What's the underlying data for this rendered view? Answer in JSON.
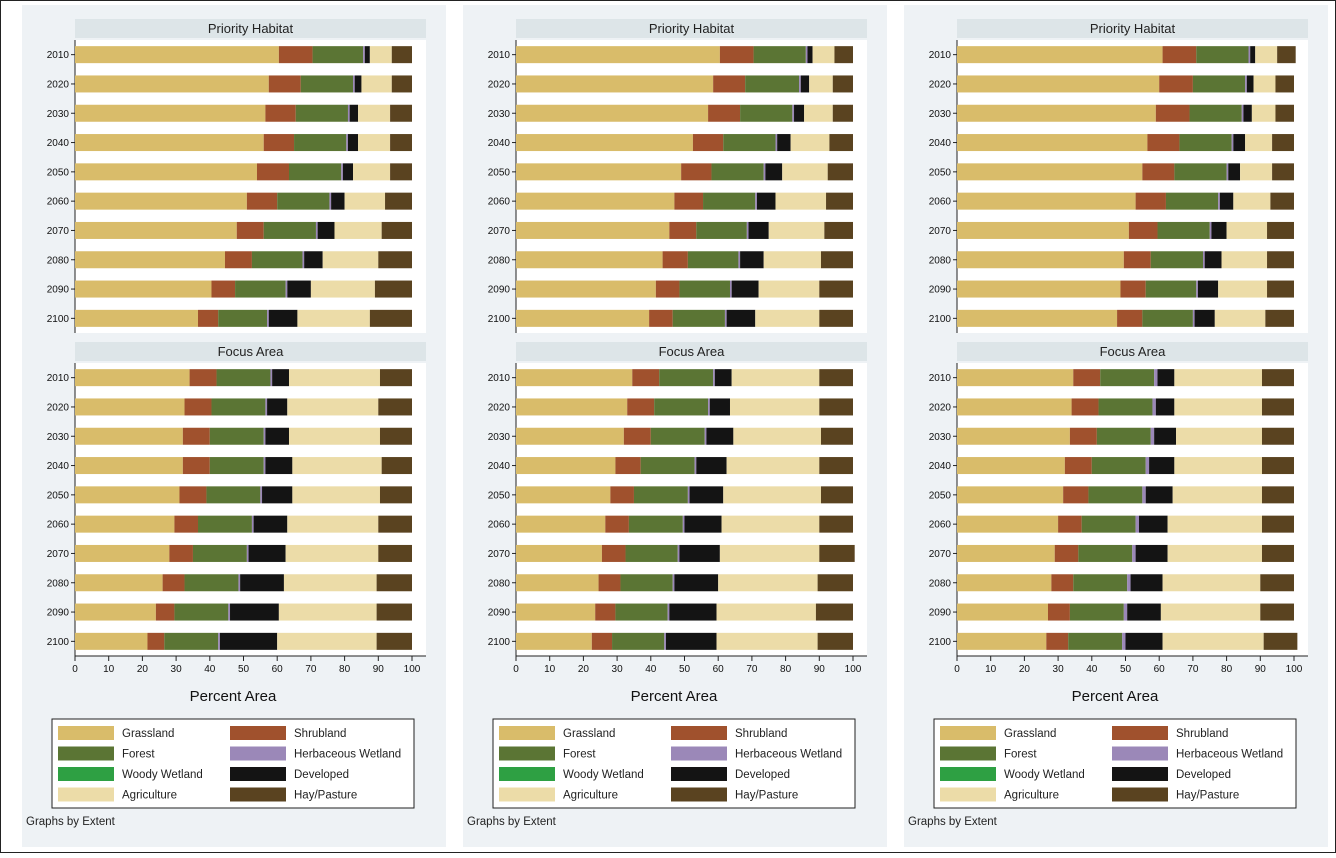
{
  "colors": {
    "Grassland": "#d9bc6a",
    "Shrubland": "#a0512d",
    "Forest": "#5b7534",
    "Herbaceous Wetland": "#9b88b8",
    "Woody Wetland": "#2ea043",
    "Developed": "#141414",
    "Agriculture": "#ecdca8",
    "Hay/Pasture": "#5a4320"
  },
  "legend": {
    "items": [
      "Grassland",
      "Shrubland",
      "Forest",
      "Herbaceous Wetland",
      "Woody Wetland",
      "Developed",
      "Agriculture",
      "Hay/Pasture"
    ]
  },
  "caption": "Graphs by Extent",
  "chart_data": [
    {
      "type": "bar",
      "orientation": "horizontal",
      "stacked": true,
      "xlabel": "Percent Area",
      "xlim": [
        0,
        100
      ],
      "xticks": [
        0,
        10,
        20,
        30,
        40,
        50,
        60,
        70,
        80,
        90,
        100
      ],
      "panels": [
        {
          "title": "Priority Habitat",
          "categories": [
            "2010",
            "2020",
            "2030",
            "2040",
            "2050",
            "2060",
            "2070",
            "2080",
            "2090",
            "2100"
          ],
          "series": [
            {
              "name": "Grassland",
              "values": [
                60.5,
                57.5,
                56.5,
                56,
                54,
                51,
                48,
                44.5,
                40.5,
                36.5
              ]
            },
            {
              "name": "Shrubland",
              "values": [
                10,
                9.5,
                9,
                9,
                9.5,
                9,
                8,
                8,
                7,
                6
              ]
            },
            {
              "name": "Forest",
              "values": [
                15,
                15.5,
                15.5,
                15.5,
                15.5,
                15.5,
                15.5,
                15,
                15,
                14.5
              ]
            },
            {
              "name": "Herbaceous Wetland",
              "values": [
                0.5,
                0.5,
                0.5,
                0.5,
                0.5,
                0.5,
                0.5,
                0.5,
                0.5,
                0.5
              ]
            },
            {
              "name": "Woody Wetland",
              "values": [
                0,
                0,
                0,
                0,
                0,
                0,
                0,
                0,
                0,
                0
              ]
            },
            {
              "name": "Developed",
              "values": [
                1.5,
                2,
                2.5,
                3,
                3,
                4,
                5,
                5.5,
                7,
                8.5
              ]
            },
            {
              "name": "Agriculture",
              "values": [
                6.5,
                9,
                9.5,
                9.5,
                11,
                12,
                14,
                16.5,
                19,
                21.5
              ]
            },
            {
              "name": "Hay/Pasture",
              "values": [
                6,
                6,
                6.5,
                6.5,
                6.5,
                8,
                9,
                10,
                11,
                12.5
              ]
            }
          ]
        },
        {
          "title": "Focus Area",
          "categories": [
            "2010",
            "2020",
            "2030",
            "2040",
            "2050",
            "2060",
            "2070",
            "2080",
            "2090",
            "2100"
          ],
          "series": [
            {
              "name": "Grassland",
              "values": [
                34,
                32.5,
                32,
                32,
                31,
                29.5,
                28,
                26,
                24,
                21.5
              ]
            },
            {
              "name": "Shrubland",
              "values": [
                8,
                8,
                8,
                8,
                8,
                7,
                7,
                6.5,
                5.5,
                5
              ]
            },
            {
              "name": "Forest",
              "values": [
                16,
                16,
                16,
                16,
                16,
                16,
                16,
                16,
                16,
                16
              ]
            },
            {
              "name": "Herbaceous Wetland",
              "values": [
                0.5,
                0.5,
                0.5,
                0.5,
                0.5,
                0.5,
                0.5,
                0.5,
                0.5,
                0.5
              ]
            },
            {
              "name": "Woody Wetland",
              "values": [
                0,
                0,
                0,
                0,
                0,
                0,
                0,
                0,
                0,
                0
              ]
            },
            {
              "name": "Developed",
              "values": [
                5,
                6,
                7,
                8,
                9,
                10,
                11,
                13,
                14.5,
                17
              ]
            },
            {
              "name": "Agriculture",
              "values": [
                27,
                27,
                27,
                26.5,
                26,
                27,
                27.5,
                27.5,
                29,
                29.5
              ]
            },
            {
              "name": "Hay/Pasture",
              "values": [
                9.5,
                10,
                9.5,
                9,
                9.5,
                10,
                10,
                10.5,
                10.5,
                10.5
              ]
            }
          ]
        }
      ]
    },
    {
      "type": "bar",
      "orientation": "horizontal",
      "stacked": true,
      "xlabel": "Percent Area",
      "xlim": [
        0,
        100
      ],
      "xticks": [
        0,
        10,
        20,
        30,
        40,
        50,
        60,
        70,
        80,
        90,
        100
      ],
      "panels": [
        {
          "title": "Priority Habitat",
          "categories": [
            "2010",
            "2020",
            "2030",
            "2040",
            "2050",
            "2060",
            "2070",
            "2080",
            "2090",
            "2100"
          ],
          "series": [
            {
              "name": "Grassland",
              "values": [
                60.5,
                58.5,
                57,
                52.5,
                49,
                47,
                45.5,
                43.5,
                41.5,
                39.5
              ]
            },
            {
              "name": "Shrubland",
              "values": [
                10,
                9.5,
                9.5,
                9,
                9,
                8.5,
                8,
                7.5,
                7,
                7
              ]
            },
            {
              "name": "Forest",
              "values": [
                15.5,
                16,
                15.5,
                15.5,
                15.5,
                15.5,
                15,
                15,
                15,
                15.5
              ]
            },
            {
              "name": "Herbaceous Wetland",
              "values": [
                0.5,
                0.5,
                0.5,
                0.5,
                0.5,
                0.5,
                0.5,
                0.5,
                0.5,
                0.5
              ]
            },
            {
              "name": "Woody Wetland",
              "values": [
                0,
                0,
                0,
                0,
                0,
                0,
                0,
                0,
                0,
                0
              ]
            },
            {
              "name": "Developed",
              "values": [
                1.5,
                2.5,
                3,
                4,
                5,
                5.5,
                6,
                7,
                8,
                8.5
              ]
            },
            {
              "name": "Agriculture",
              "values": [
                6.5,
                7,
                8.5,
                11.5,
                13.5,
                15,
                16.5,
                17,
                18,
                19
              ]
            },
            {
              "name": "Hay/Pasture",
              "values": [
                5.5,
                6,
                6,
                7,
                7.5,
                8,
                8.5,
                9.5,
                10,
                10
              ]
            }
          ]
        },
        {
          "title": "Focus Area",
          "categories": [
            "2010",
            "2020",
            "2030",
            "2040",
            "2050",
            "2060",
            "2070",
            "2080",
            "2090",
            "2100"
          ],
          "series": [
            {
              "name": "Grassland",
              "values": [
                34.5,
                33,
                32,
                29.5,
                28,
                26.5,
                25.5,
                24.5,
                23.5,
                22.5
              ]
            },
            {
              "name": "Shrubland",
              "values": [
                8,
                8,
                8,
                7.5,
                7,
                7,
                7,
                6.5,
                6,
                6
              ]
            },
            {
              "name": "Forest",
              "values": [
                16,
                16,
                16,
                16,
                16,
                16,
                15.5,
                15.5,
                15.5,
                15.5
              ]
            },
            {
              "name": "Herbaceous Wetland",
              "values": [
                0.5,
                0.5,
                0.5,
                0.5,
                0.5,
                0.5,
                0.5,
                0.5,
                0.5,
                0.5
              ]
            },
            {
              "name": "Woody Wetland",
              "values": [
                0,
                0,
                0,
                0,
                0,
                0,
                0,
                0,
                0,
                0
              ]
            },
            {
              "name": "Developed",
              "values": [
                5,
                6,
                8,
                9,
                10,
                11,
                12,
                13,
                14,
                15
              ]
            },
            {
              "name": "Agriculture",
              "values": [
                26,
                26.5,
                26,
                27.5,
                29,
                29,
                29.5,
                29.5,
                29.5,
                30
              ]
            },
            {
              "name": "Hay/Pasture",
              "values": [
                10,
                10,
                9.5,
                10,
                9.5,
                10,
                10.5,
                10.5,
                11,
                10.5
              ]
            }
          ]
        }
      ]
    },
    {
      "type": "bar",
      "orientation": "horizontal",
      "stacked": true,
      "xlabel": "Percent Area",
      "xlim": [
        0,
        100
      ],
      "xticks": [
        0,
        10,
        20,
        30,
        40,
        50,
        60,
        70,
        80,
        90,
        100
      ],
      "panels": [
        {
          "title": "Priority Habitat",
          "categories": [
            "2010",
            "2020",
            "2030",
            "2040",
            "2050",
            "2060",
            "2070",
            "2080",
            "2090",
            "2100"
          ],
          "series": [
            {
              "name": "Grassland",
              "values": [
                61,
                60,
                59,
                56.5,
                55,
                53,
                51,
                49.5,
                48.5,
                47.5
              ]
            },
            {
              "name": "Shrubland",
              "values": [
                10,
                10,
                10,
                9.5,
                9.5,
                9,
                8.5,
                8,
                7.5,
                7.5
              ]
            },
            {
              "name": "Forest",
              "values": [
                15.5,
                15.5,
                15.5,
                15.5,
                15.5,
                15.5,
                15.5,
                15.5,
                15,
                15
              ]
            },
            {
              "name": "Herbaceous Wetland",
              "values": [
                0.5,
                0.5,
                0.5,
                0.5,
                0.5,
                0.5,
                0.5,
                0.5,
                0.5,
                0.5
              ]
            },
            {
              "name": "Woody Wetland",
              "values": [
                0,
                0,
                0,
                0,
                0,
                0,
                0,
                0,
                0,
                0
              ]
            },
            {
              "name": "Developed",
              "values": [
                1.5,
                2,
                2.5,
                3.5,
                3.5,
                4,
                4.5,
                5,
                6,
                6
              ]
            },
            {
              "name": "Agriculture",
              "values": [
                6.5,
                6.5,
                7,
                8,
                9.5,
                11,
                12,
                13.5,
                14.5,
                15
              ]
            },
            {
              "name": "Hay/Pasture",
              "values": [
                5.5,
                5.5,
                5.5,
                6.5,
                6.5,
                7,
                8,
                8,
                8,
                8.5
              ]
            }
          ]
        },
        {
          "title": "Focus Area",
          "categories": [
            "2010",
            "2020",
            "2030",
            "2040",
            "2050",
            "2060",
            "2070",
            "2080",
            "2090",
            "2100"
          ],
          "series": [
            {
              "name": "Grassland",
              "values": [
                34.5,
                34,
                33.5,
                32,
                31.5,
                30,
                29,
                28,
                27,
                26.5
              ]
            },
            {
              "name": "Shrubland",
              "values": [
                8,
                8,
                8,
                8,
                7.5,
                7,
                7,
                6.5,
                6.5,
                6.5
              ]
            },
            {
              "name": "Forest",
              "values": [
                16,
                16,
                16,
                16,
                16,
                16,
                16,
                16,
                16,
                16
              ]
            },
            {
              "name": "Herbaceous Wetland",
              "values": [
                1,
                1,
                1,
                1,
                1,
                1,
                1,
                1,
                1,
                1
              ]
            },
            {
              "name": "Woody Wetland",
              "values": [
                0,
                0,
                0,
                0,
                0,
                0,
                0,
                0,
                0,
                0
              ]
            },
            {
              "name": "Developed",
              "values": [
                5,
                5.5,
                6.5,
                7.5,
                8,
                8.5,
                9.5,
                9.5,
                10,
                11
              ]
            },
            {
              "name": "Agriculture",
              "values": [
                26,
                26,
                25.5,
                26,
                26.5,
                28,
                28,
                29,
                29.5,
                30
              ]
            },
            {
              "name": "Hay/Pasture",
              "values": [
                9.5,
                9.5,
                9.5,
                9.5,
                9.5,
                9.5,
                9.5,
                10,
                10,
                10
              ]
            }
          ]
        }
      ]
    }
  ]
}
